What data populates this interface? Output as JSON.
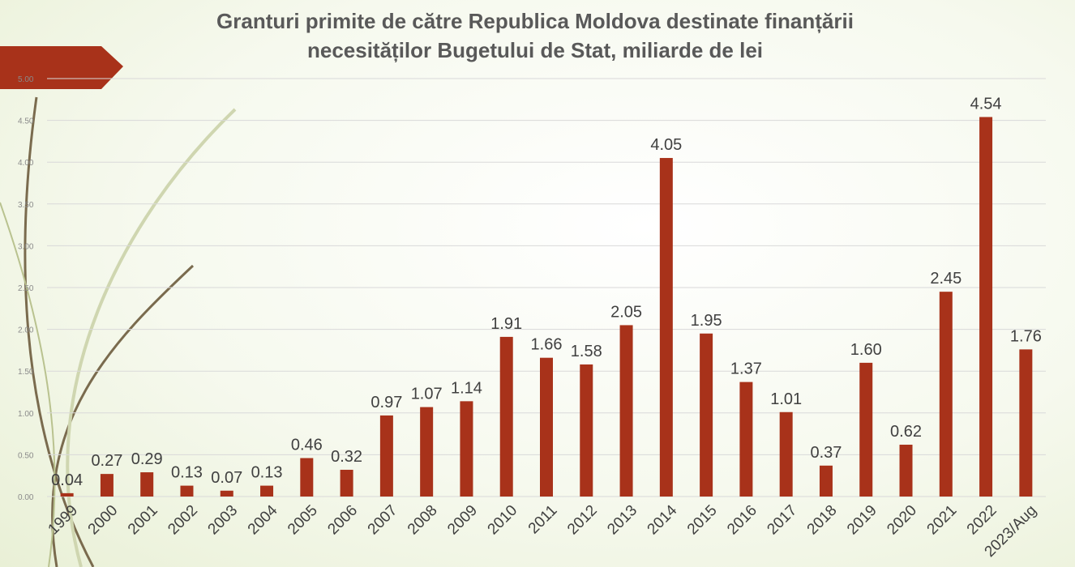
{
  "title_line1": "Granturi primite de către Republica Moldova destinate finanțării",
  "title_line2": "necesităților Bugetului de Stat, miliarde de lei",
  "colors": {
    "bar": "#a8321a",
    "accent": "#a8321a",
    "grid": "#d9d9d9"
  },
  "chart_data": {
    "type": "bar",
    "title": "Granturi primite de către Republica Moldova destinate finanțării necesităților Bugetului de Stat, miliarde de lei",
    "xlabel": "",
    "ylabel": "",
    "ylim": [
      0,
      5
    ],
    "yticks": [
      "0.00",
      "0.50",
      "1.00",
      "1.50",
      "2.00",
      "2.50",
      "3.00",
      "3.50",
      "4.00",
      "4.50",
      "5.00"
    ],
    "grid": true,
    "categories": [
      "1999",
      "2000",
      "2001",
      "2002",
      "2003",
      "2004",
      "2005",
      "2006",
      "2007",
      "2008",
      "2009",
      "2010",
      "2011",
      "2012",
      "2013",
      "2014",
      "2015",
      "2016",
      "2017",
      "2018",
      "2019",
      "2020",
      "2021",
      "2022",
      "2023/Aug"
    ],
    "values": [
      0.04,
      0.27,
      0.29,
      0.13,
      0.07,
      0.13,
      0.46,
      0.32,
      0.97,
      1.07,
      1.14,
      1.91,
      1.66,
      1.58,
      2.05,
      4.05,
      1.95,
      1.37,
      1.01,
      0.37,
      1.6,
      0.62,
      2.45,
      4.54,
      1.76
    ],
    "data_labels": [
      "0.04",
      "0.27",
      "0.29",
      "0.13",
      "0.07",
      "0.13",
      "0.46",
      "0.32",
      "0.97",
      "1.07",
      "1.14",
      "1.91",
      "1.66",
      "1.58",
      "2.05",
      "4.05",
      "1.95",
      "1.37",
      "1.01",
      "0.37",
      "1.60",
      "0.62",
      "2.45",
      "4.54",
      "1.76"
    ]
  }
}
